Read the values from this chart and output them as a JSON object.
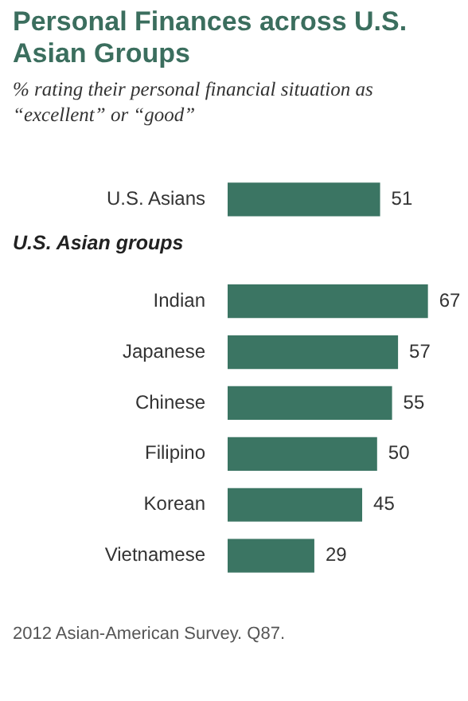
{
  "chart_data": {
    "type": "bar",
    "orientation": "horizontal",
    "title": "Personal Finances across U.S. Asian Groups",
    "subtitle": "% rating their personal financial situation as “excellent” or “good”",
    "categories": [
      "U.S. Asians",
      null,
      "Indian",
      "Japanese",
      "Chinese",
      "Filipino",
      "Korean",
      "Vietnamese"
    ],
    "values": [
      51,
      null,
      67,
      57,
      55,
      50,
      45,
      29
    ],
    "color": "#3b7563",
    "data_labels": true,
    "grid": false,
    "legend": false,
    "annotations": [
      "U.S. Asian groups",
      "2012 Asian-American Survey. Q87."
    ]
  }
}
